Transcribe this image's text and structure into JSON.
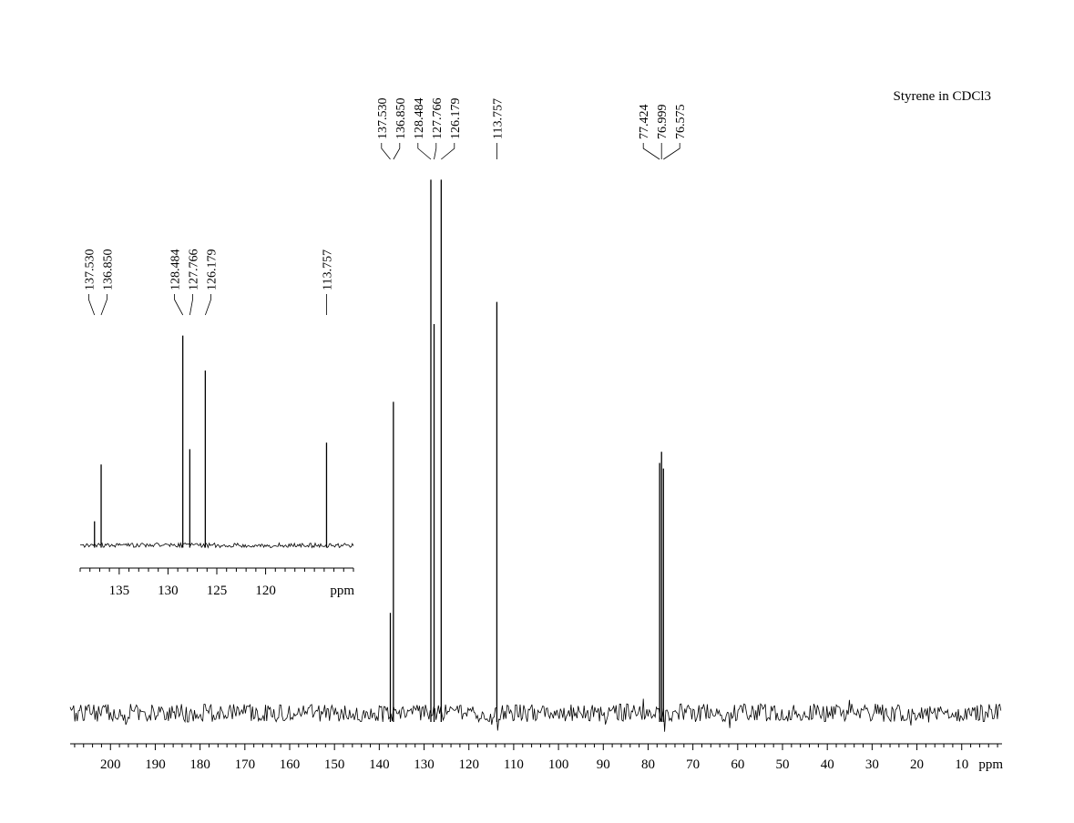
{
  "chart_data": [
    {
      "id": "main",
      "type": "line",
      "title": "Styrene in CDCl3",
      "xlabel": "ppm",
      "xlim": [
        209,
        1
      ],
      "x_ticks": [
        200,
        190,
        180,
        170,
        160,
        150,
        140,
        130,
        120,
        110,
        100,
        90,
        80,
        70,
        60,
        50,
        40,
        30,
        20,
        10
      ],
      "peaks": [
        {
          "ppm": 137.53,
          "height": 0.18
        },
        {
          "ppm": 136.85,
          "height": 0.56
        },
        {
          "ppm": 128.484,
          "height": 0.96
        },
        {
          "ppm": 127.766,
          "height": 0.7
        },
        {
          "ppm": 126.179,
          "height": 0.96
        },
        {
          "ppm": 113.757,
          "height": 0.74
        },
        {
          "ppm": 77.424,
          "height": 0.45
        },
        {
          "ppm": 76.999,
          "height": 0.47
        },
        {
          "ppm": 76.575,
          "height": 0.44
        }
      ],
      "peak_label_groups": [
        {
          "labels": [
            "137.530",
            "136.850",
            "128.484",
            "127.766",
            "126.179"
          ]
        },
        {
          "labels": [
            "113.757"
          ]
        },
        {
          "labels": [
            "77.424",
            "76.999",
            "76.575"
          ]
        }
      ]
    },
    {
      "id": "inset",
      "type": "line",
      "xlabel": "ppm",
      "xlim": [
        139,
        111
      ],
      "x_ticks": [
        135,
        130,
        125,
        120
      ],
      "peaks": [
        {
          "ppm": 137.53,
          "height": 0.11
        },
        {
          "ppm": 136.85,
          "height": 0.37
        },
        {
          "ppm": 128.484,
          "height": 0.96
        },
        {
          "ppm": 127.766,
          "height": 0.44
        },
        {
          "ppm": 126.179,
          "height": 0.8
        },
        {
          "ppm": 113.757,
          "height": 0.47
        }
      ],
      "peak_label_groups": [
        {
          "labels": [
            "137.530",
            "136.850"
          ]
        },
        {
          "labels": [
            "128.484",
            "127.766",
            "126.179"
          ]
        },
        {
          "labels": [
            "113.757"
          ]
        }
      ]
    }
  ]
}
